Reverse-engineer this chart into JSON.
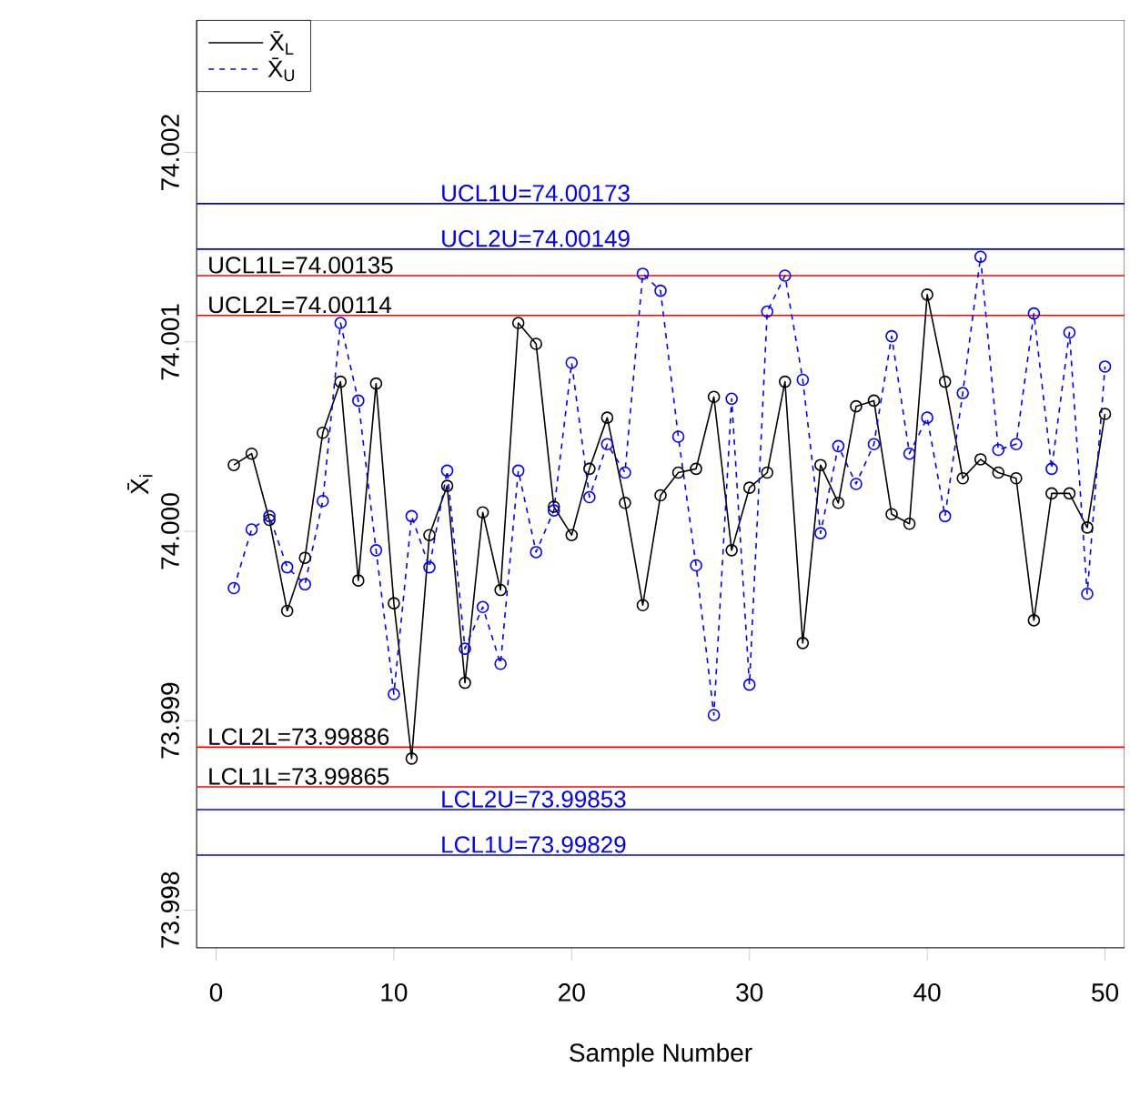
{
  "chart_data": {
    "type": "line",
    "xlabel": "Sample Number",
    "ylabel": "X̄$_{i}$",
    "x": [
      1,
      2,
      3,
      4,
      5,
      6,
      7,
      8,
      9,
      10,
      11,
      12,
      13,
      14,
      15,
      16,
      17,
      18,
      19,
      20,
      21,
      22,
      23,
      24,
      25,
      26,
      27,
      28,
      29,
      30,
      31,
      32,
      33,
      34,
      35,
      36,
      37,
      38,
      39,
      40,
      41,
      42,
      43,
      44,
      45,
      46,
      47,
      48,
      49,
      50
    ],
    "series": [
      {
        "name": "X̄$_{L}$",
        "color": "#000000",
        "line_style": "solid",
        "values": [
          74.00035,
          74.00041,
          74.00006,
          73.99958,
          73.99986,
          74.00052,
          74.00079,
          73.99974,
          74.00078,
          73.99962,
          73.9988,
          73.99998,
          74.00024,
          73.9992,
          74.0001,
          73.99969,
          74.0011,
          74.00099,
          74.00013,
          73.99998,
          74.00033,
          74.0006,
          74.00015,
          73.99961,
          74.00019,
          74.00031,
          74.00033,
          74.00071,
          73.9999,
          74.00023,
          74.00031,
          74.00079,
          73.99941,
          74.00035,
          74.00015,
          74.00066,
          74.00069,
          74.00009,
          74.00004,
          74.00125,
          74.00079,
          74.00028,
          74.00038,
          74.00031,
          74.00028,
          73.99953,
          74.0002,
          74.0002,
          74.00002,
          74.00062
        ]
      },
      {
        "name": "X̄$_{U}$",
        "color": "#0000ff",
        "line_style": "dashed",
        "values": [
          73.9997,
          74.00001,
          74.00008,
          73.99981,
          73.99972,
          74.00016,
          74.0011,
          74.00069,
          73.9999,
          73.99914,
          74.00008,
          73.99981,
          74.00032,
          73.99938,
          73.9996,
          73.9993,
          74.00032,
          73.99989,
          74.00011,
          74.00089,
          74.00018,
          74.00046,
          74.00031,
          74.00136,
          74.00127,
          74.0005,
          73.99982,
          73.99903,
          74.0007,
          73.99919,
          74.00116,
          74.00135,
          74.0008,
          73.99999,
          74.00045,
          74.00025,
          74.00046,
          74.00103,
          74.00041,
          74.0006,
          74.00008,
          74.00073,
          74.00145,
          74.00043,
          74.00046,
          74.00115,
          74.00033,
          74.00105,
          73.99967,
          74.00087
        ]
      }
    ],
    "xlim": [
      -1.1,
      51.1
    ],
    "ylim": [
      73.9978,
      74.0027
    ],
    "xticks": [
      0,
      10,
      20,
      30,
      40,
      50
    ],
    "yticks": [
      73.998,
      73.999,
      {
        "value": 74.0,
        "label": "74.000"
      },
      74.001,
      74.002
    ],
    "marker": "circle",
    "legend": "top left",
    "grid": false,
    "ref_lines": [
      {
        "axis": "y",
        "value": 74.00173,
        "label": "UCL1U=74.00173",
        "color": "#0000ff"
      },
      {
        "axis": "y",
        "value": 74.00149,
        "label": "UCL2U=74.00149",
        "color": "#0000ff"
      },
      {
        "axis": "y",
        "value": 74.00135,
        "label": "UCL1L=74.00135",
        "color": "#ff0000"
      },
      {
        "axis": "y",
        "value": 74.00114,
        "label": "UCL2L=74.00114",
        "color": "#ff0000"
      },
      {
        "axis": "y",
        "value": 73.99886,
        "label": "LCL2L=73.99886",
        "color": "#ff0000"
      },
      {
        "axis": "y",
        "value": 73.99865,
        "label": "LCL1L=73.99865",
        "color": "#ff0000"
      },
      {
        "axis": "y",
        "value": 73.99853,
        "label": "LCL2U=73.99853",
        "color": "#0000ff"
      },
      {
        "axis": "y",
        "value": 73.99829,
        "label": "LCL1U=73.99829",
        "color": "#0000ff"
      }
    ]
  }
}
